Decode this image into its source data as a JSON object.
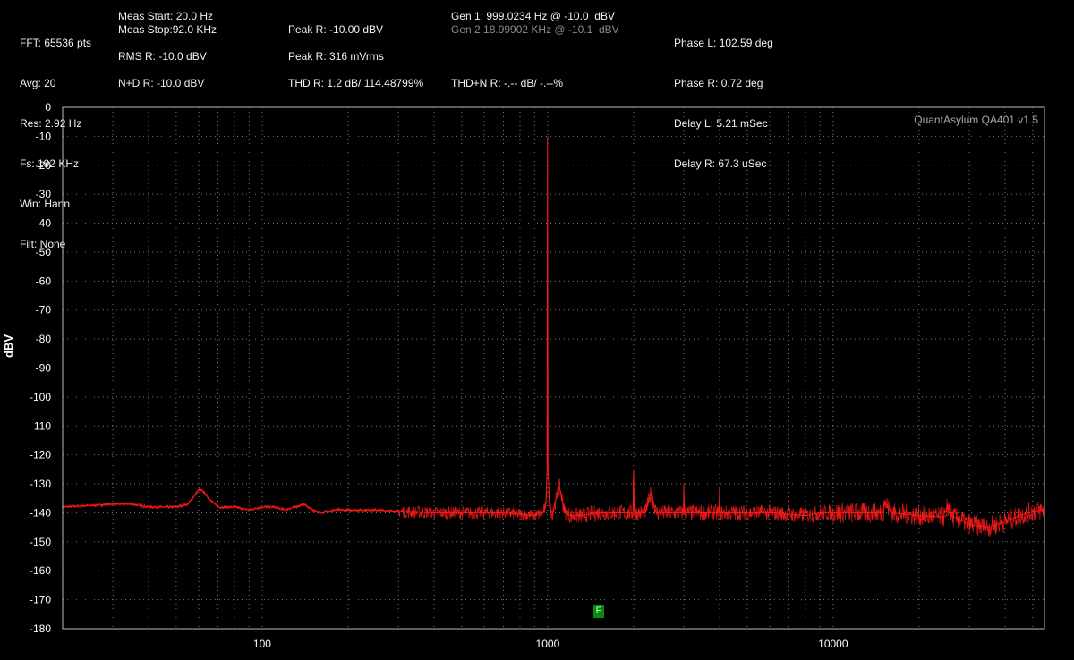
{
  "readouts": {
    "col1": [
      "FFT: 65536 pts",
      "Avg: 20",
      "Res: 2.92 Hz",
      "Fs: 192 KHz",
      "Win: Hann",
      "Filt: None"
    ],
    "meas_start": "Meas Start: 20.0 Hz",
    "meas_stop": "Meas Stop:92.0 KHz",
    "rms_r": "RMS R: -10.0 dBV",
    "nd_r": "N+D R: -10.0 dBV",
    "peak_r_dbv": "Peak R: -10.00 dBV",
    "peak_r_mvrms": "Peak R: 316 mVrms",
    "thd_r": "THD R: 1.2 dB/ 114.48799%",
    "thdn_r": "THD+N R: -.-- dB/ -.--%",
    "gen1": "Gen 1: 999.0234 Hz @ -10.0  dBV",
    "gen2": "Gen 2:18.99902 KHz @ -10.1  dBV",
    "phase_delay": [
      "Phase L: 102.59 deg",
      "Phase R: 0.72 deg",
      "Delay L: 5.21 mSec",
      "Delay R: 67.3 uSec"
    ]
  },
  "brand": "QuantAsylum QA401 v1.5",
  "marker_label": "F",
  "colors": {
    "trace": "#ff1a1a",
    "grid": "#7a7a7a",
    "background": "#000000",
    "marker": "#0a8a0a"
  },
  "chart_data": {
    "type": "line",
    "title": "",
    "xlabel": "",
    "ylabel": "dBV",
    "x_scale": "log",
    "xlim": [
      20,
      55000
    ],
    "ylim": [
      -180,
      0
    ],
    "x_tick_labels": [
      "100",
      "1000",
      "10000"
    ],
    "x_tick_values": [
      100,
      1000,
      10000
    ],
    "y_tick_values": [
      0,
      -10,
      -20,
      -30,
      -40,
      -50,
      -60,
      -70,
      -80,
      -90,
      -100,
      -110,
      -120,
      -130,
      -140,
      -150,
      -160,
      -170,
      -180
    ],
    "grid": true,
    "series": [
      {
        "x": [
          20,
          25,
          30,
          35,
          40,
          45,
          50,
          55,
          60,
          62,
          65,
          70,
          80,
          90,
          100,
          110,
          120,
          130,
          140,
          150,
          160,
          180,
          200,
          250,
          300,
          400,
          500,
          600,
          700,
          800,
          900,
          960,
          985,
          995,
          999,
          1003,
          1015,
          1040,
          1100,
          1150,
          1200,
          1300,
          1500,
          1800,
          1990,
          2000,
          2010,
          2200,
          2300,
          2400,
          2800,
          2990,
          3000,
          3010,
          3500,
          3990,
          4000,
          4010,
          5000,
          6000,
          7000,
          8000,
          9000,
          10000,
          12000,
          14000,
          15000,
          15100,
          16000,
          20000,
          24000,
          25000,
          25100,
          26000,
          30000,
          35000,
          40000,
          45000,
          50000,
          55000
        ],
        "y": [
          -138,
          -137.5,
          -137,
          -137,
          -138,
          -138,
          -138,
          -137,
          -132,
          -132.5,
          -135,
          -138,
          -138,
          -139,
          -138,
          -138,
          -139,
          -138,
          -137,
          -139,
          -140,
          -139,
          -139,
          -139,
          -139.5,
          -140,
          -140,
          -140,
          -140,
          -140.5,
          -141,
          -140,
          -138,
          -125,
          -10,
          -125,
          -138,
          -140,
          -131,
          -140,
          -141,
          -141,
          -140,
          -140,
          -140,
          -125,
          -140,
          -140,
          -133,
          -140,
          -140,
          -140,
          -130,
          -140,
          -140,
          -140,
          -131,
          -140,
          -140,
          -140,
          -140.5,
          -141,
          -140,
          -140,
          -140,
          -140,
          -140,
          -136,
          -140,
          -141,
          -141.5,
          -141,
          -137,
          -141,
          -144,
          -145,
          -143,
          -141,
          -139.5,
          -139
        ]
      }
    ]
  }
}
